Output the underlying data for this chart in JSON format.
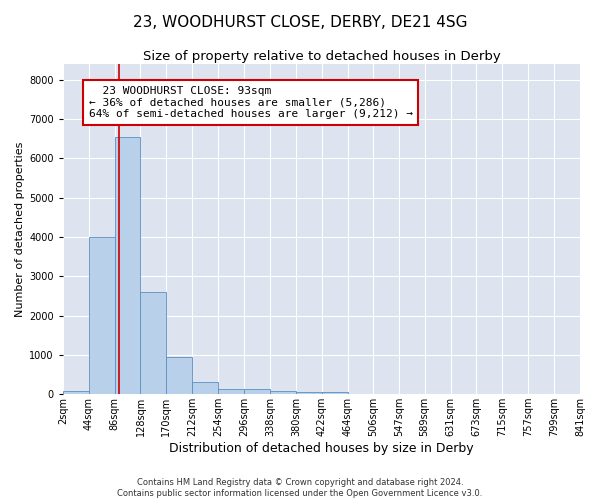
{
  "title": "23, WOODHURST CLOSE, DERBY, DE21 4SG",
  "subtitle": "Size of property relative to detached houses in Derby",
  "xlabel": "Distribution of detached houses by size in Derby",
  "ylabel": "Number of detached properties",
  "footer1": "Contains HM Land Registry data © Crown copyright and database right 2024.",
  "footer2": "Contains public sector information licensed under the Open Government Licence v3.0.",
  "bin_edges": [
    2,
    44,
    86,
    128,
    170,
    212,
    254,
    296,
    338,
    380,
    422,
    464,
    506,
    547,
    589,
    631,
    673,
    715,
    757,
    799,
    841
  ],
  "bin_labels": [
    "2sqm",
    "44sqm",
    "86sqm",
    "128sqm",
    "170sqm",
    "212sqm",
    "254sqm",
    "296sqm",
    "338sqm",
    "380sqm",
    "422sqm",
    "464sqm",
    "506sqm",
    "547sqm",
    "589sqm",
    "631sqm",
    "673sqm",
    "715sqm",
    "757sqm",
    "799sqm",
    "841sqm"
  ],
  "bar_heights": [
    80,
    4000,
    6550,
    2600,
    950,
    320,
    130,
    120,
    75,
    60,
    50,
    0,
    0,
    0,
    0,
    0,
    0,
    0,
    0,
    0
  ],
  "bar_color": "#b8d0ea",
  "bar_edge_color": "#5a8fc0",
  "property_size": 93,
  "property_label": "23 WOODHURST CLOSE: 93sqm",
  "pct_smaller": 36,
  "num_smaller": 5286,
  "pct_larger": 64,
  "num_larger": 9212,
  "vline_color": "#cc0000",
  "annotation_box_color": "#cc0000",
  "ylim": [
    0,
    8400
  ],
  "yticks": [
    0,
    1000,
    2000,
    3000,
    4000,
    5000,
    6000,
    7000,
    8000
  ],
  "bg_color": "#dde4f0",
  "grid_color": "#ffffff",
  "fig_bg_color": "#ffffff",
  "title_fontsize": 11,
  "subtitle_fontsize": 9.5,
  "xlabel_fontsize": 9,
  "ylabel_fontsize": 8,
  "tick_fontsize": 7,
  "annot_fontsize": 8,
  "footer_fontsize": 6
}
